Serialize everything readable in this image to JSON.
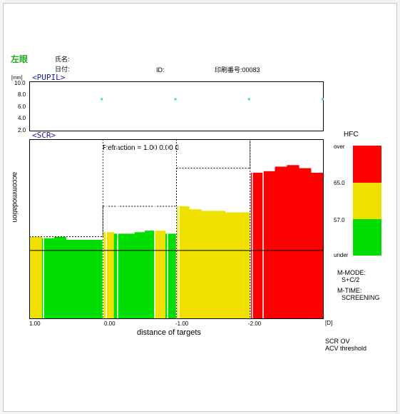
{
  "header": {
    "eye": "左眼",
    "name_label": "氏名:",
    "date_label": "日付:",
    "id_label": "ID:",
    "print_no": "印刷番号:00083"
  },
  "pupil": {
    "title": "<PUPIL>",
    "unit": "[mm]",
    "ticks": [
      "10.0",
      "8.0",
      "6.0",
      "4.0",
      "2.0"
    ],
    "ylim": [
      2.0,
      10.0
    ],
    "points": [
      7.1,
      7.1,
      7.1,
      7.1
    ],
    "point_color": "#33dddd"
  },
  "scr": {
    "title": "<SCR>",
    "refraction": "Refraction = 1.00  0.00  0",
    "ylabel": "accommodation",
    "xlabel": "distance of targets",
    "xticks": [
      "1.00",
      "0.00",
      "-1.00",
      "-2.00"
    ],
    "xunit": "[D]"
  },
  "legend": {
    "title": "HFC",
    "labels": [
      "over",
      "65.0",
      "57.0",
      "under"
    ],
    "colors": [
      "#ff0000",
      "#f0e000",
      "#00dd00"
    ]
  },
  "notes": {
    "mode": "M-MODE:",
    "mode_value": "S+C/2",
    "time": "M-TIME:",
    "time_value": "SCREENING",
    "footer1": "SCR OV",
    "footer2": "ACV threshold"
  },
  "colors": {
    "red": "#ff0000",
    "yellow": "#f0e000",
    "green": "#00dd00"
  },
  "chart_data": {
    "type": "bar",
    "y_visible_fraction": [
      0.19,
      0.78
    ],
    "reference_line_fraction": 0.415,
    "groups": [
      {
        "target": "1.00",
        "stimulus_fraction": 0.46,
        "bars": [
          {
            "v": 0.46,
            "c": "yellow"
          },
          {
            "v": 0.455,
            "c": "green"
          },
          {
            "v": 0.46,
            "c": "green"
          },
          {
            "v": 0.45,
            "c": "green"
          },
          {
            "v": 0.45,
            "c": "green"
          },
          {
            "v": 0.45,
            "c": "green"
          }
        ]
      },
      {
        "target": "0.00",
        "stimulus_fraction": 0.56,
        "bars": [
          {
            "v": 0.475,
            "c": "yellow"
          },
          {
            "v": 0.47,
            "c": "green"
          },
          {
            "v": 0.47,
            "c": "green"
          },
          {
            "v": 0.475,
            "c": "green"
          },
          {
            "v": 0.48,
            "c": "green"
          },
          {
            "v": 0.48,
            "c": "yellow"
          },
          {
            "v": 0.47,
            "c": "green"
          }
        ]
      },
      {
        "target": "-1.00",
        "stimulus_fraction": 0.685,
        "bars": [
          {
            "v": 0.56,
            "c": "yellow"
          },
          {
            "v": 0.55,
            "c": "yellow"
          },
          {
            "v": 0.545,
            "c": "yellow"
          },
          {
            "v": 0.545,
            "c": "yellow"
          },
          {
            "v": 0.54,
            "c": "yellow"
          },
          {
            "v": 0.54,
            "c": "yellow"
          }
        ]
      },
      {
        "target": "-2.00",
        "stimulus_fraction": 0.825,
        "bars": [
          {
            "v": 0.67,
            "c": "red"
          },
          {
            "v": 0.675,
            "c": "red"
          },
          {
            "v": 0.69,
            "c": "red"
          },
          {
            "v": 0.695,
            "c": "red"
          },
          {
            "v": 0.685,
            "c": "red"
          },
          {
            "v": 0.67,
            "c": "red"
          }
        ]
      }
    ]
  }
}
